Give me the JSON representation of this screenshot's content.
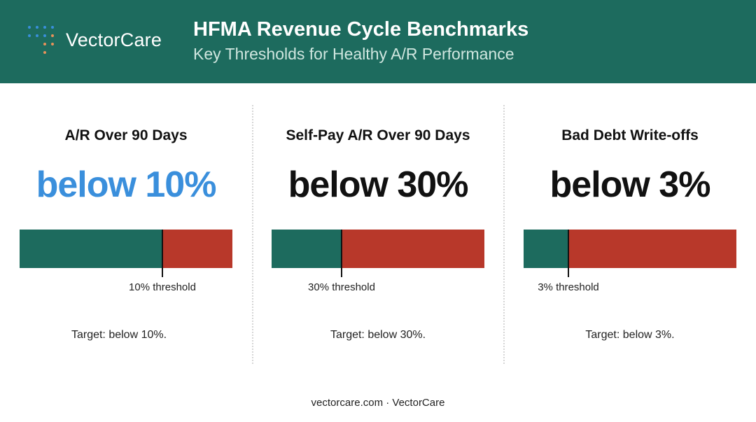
{
  "header": {
    "logo_text": "VectorCare",
    "title": "HFMA Revenue Cycle Benchmarks",
    "subtitle": "Key Thresholds for Healthy A/R Performance"
  },
  "colors": {
    "header_bg": "#1d6b5e",
    "good": "#1d6b5e",
    "bad": "#b8382a",
    "accent_value": "#3a8fdc"
  },
  "panels": [
    {
      "title": "A/R Over 90 Days",
      "value": "below 10%",
      "threshold_label": "10% threshold",
      "target": "Target: below 10%.",
      "threshold_fraction": 0.67
    },
    {
      "title": "Self-Pay A/R Over 90 Days",
      "value": "below 30%",
      "threshold_label": "30% threshold",
      "target": "Target: below 30%.",
      "threshold_fraction": 0.33
    },
    {
      "title": "Bad Debt Write-offs",
      "value": "below 3%",
      "threshold_label": "3% threshold",
      "target": "Target: below 3%.",
      "threshold_fraction": 0.21
    }
  ],
  "footer": "vectorcare.com · VectorCare"
}
